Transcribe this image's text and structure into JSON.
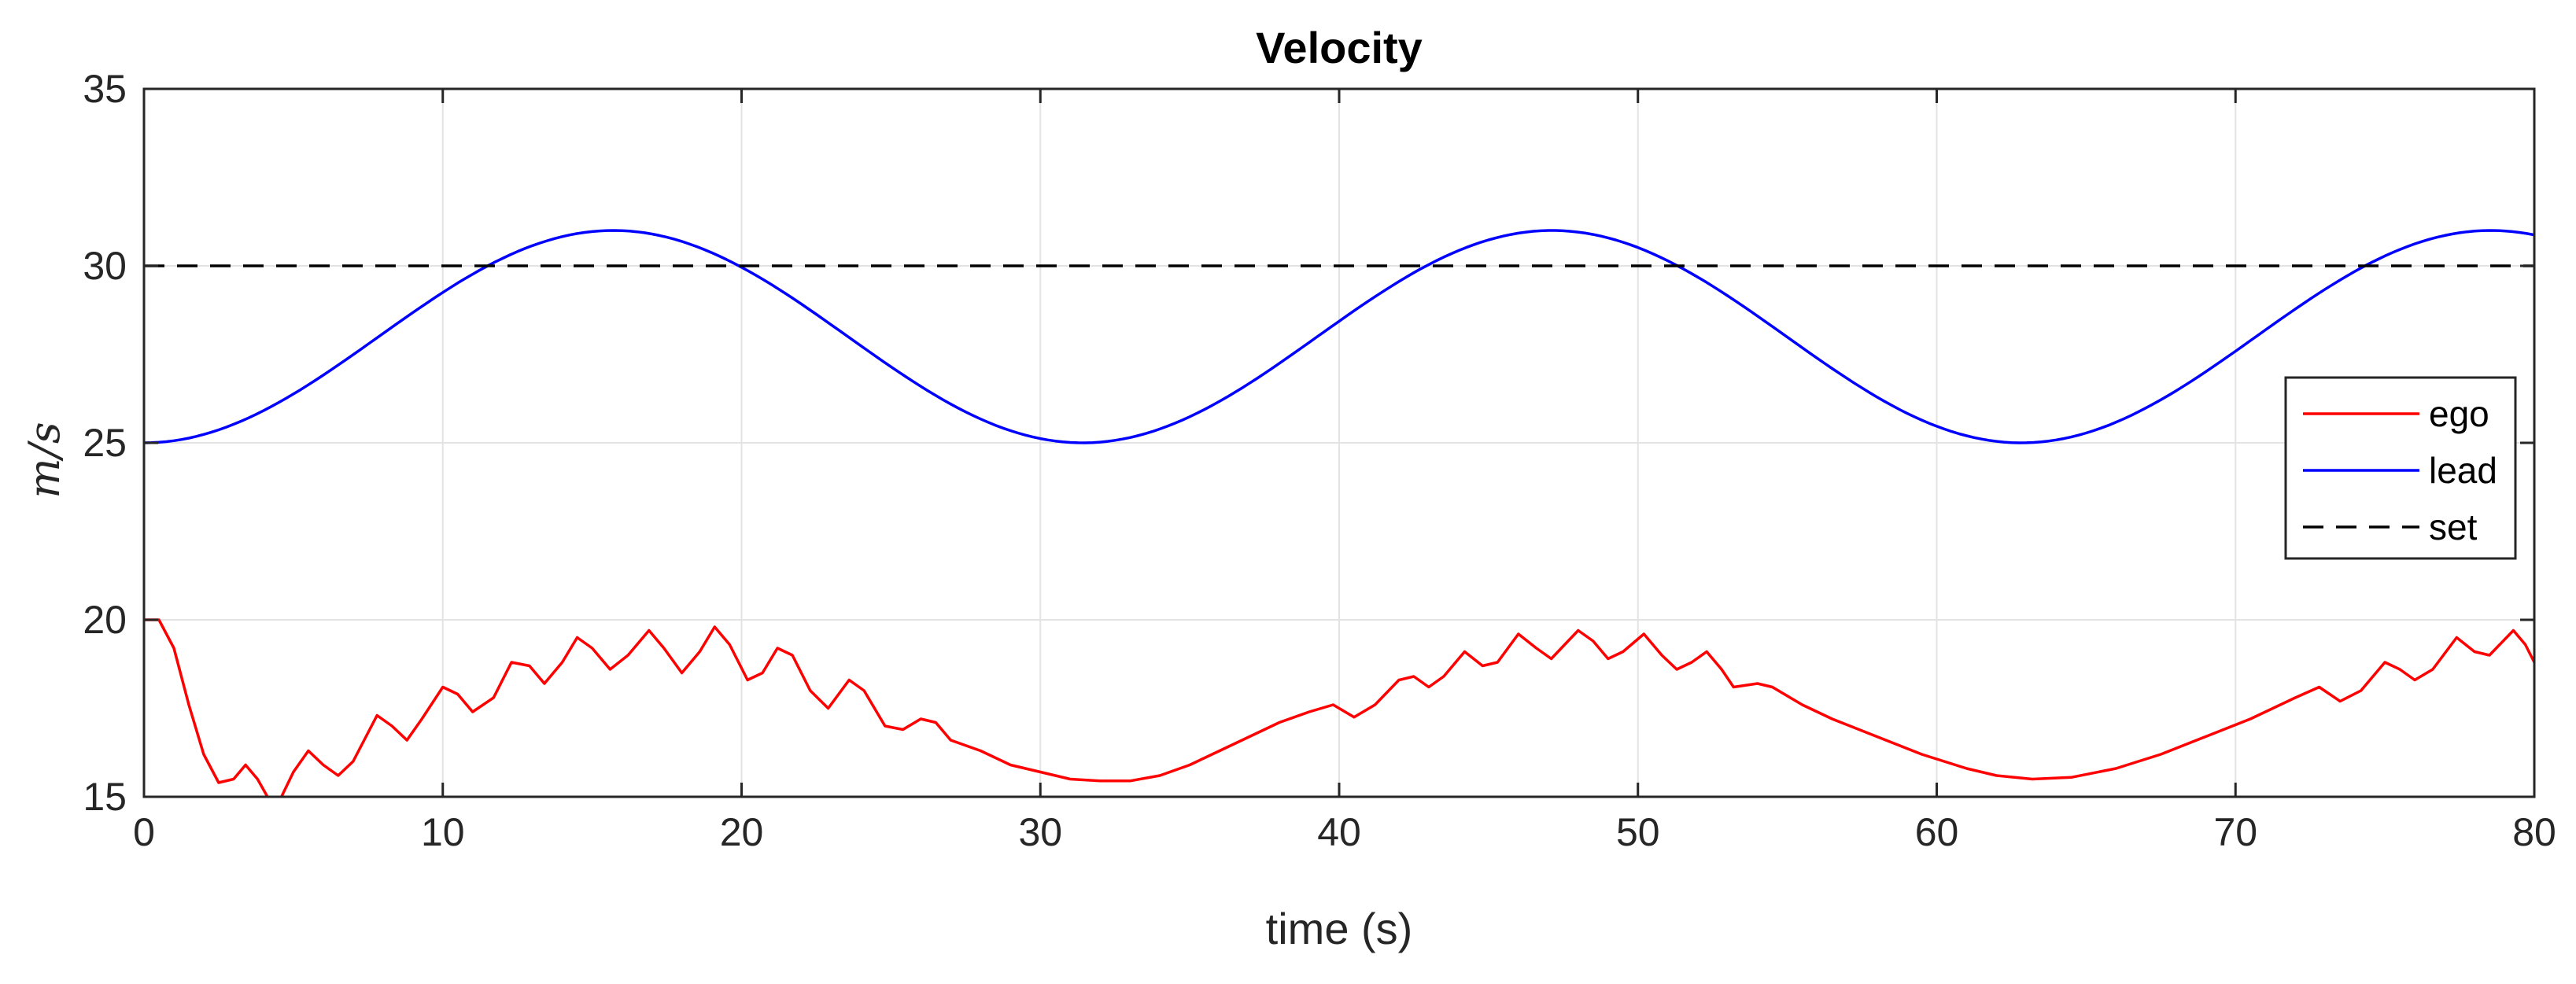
{
  "chart_data": {
    "type": "line",
    "title": "Velocity",
    "xlabel": "time (s)",
    "ylabel": "m/s",
    "xlim": [
      0,
      80
    ],
    "ylim": [
      15,
      35
    ],
    "xticks": [
      0,
      10,
      20,
      30,
      40,
      50,
      60,
      70,
      80
    ],
    "yticks": [
      15,
      20,
      25,
      30,
      35
    ],
    "grid": true,
    "legend_position": "right",
    "series": [
      {
        "name": "ego",
        "color": "#ff0000",
        "style": "solid",
        "points": [
          [
            0,
            20.0
          ],
          [
            0.5,
            20.0
          ],
          [
            1,
            19.2
          ],
          [
            1.5,
            17.6
          ],
          [
            2,
            16.2
          ],
          [
            2.5,
            15.4
          ],
          [
            3,
            15.5
          ],
          [
            3.4,
            15.9
          ],
          [
            3.8,
            15.5
          ],
          [
            4.2,
            14.9
          ],
          [
            4.6,
            15.0
          ],
          [
            5,
            15.7
          ],
          [
            5.5,
            16.3
          ],
          [
            6,
            15.9
          ],
          [
            6.5,
            15.6
          ],
          [
            7,
            16.0
          ],
          [
            7.8,
            17.3
          ],
          [
            8.3,
            17.0
          ],
          [
            8.8,
            16.6
          ],
          [
            9.3,
            17.2
          ],
          [
            10,
            18.1
          ],
          [
            10.5,
            17.9
          ],
          [
            11,
            17.4
          ],
          [
            11.7,
            17.8
          ],
          [
            12.3,
            18.8
          ],
          [
            12.9,
            18.7
          ],
          [
            13.4,
            18.2
          ],
          [
            14,
            18.8
          ],
          [
            14.5,
            19.5
          ],
          [
            15,
            19.2
          ],
          [
            15.6,
            18.6
          ],
          [
            16.2,
            19.0
          ],
          [
            16.9,
            19.7
          ],
          [
            17.4,
            19.2
          ],
          [
            18,
            18.5
          ],
          [
            18.6,
            19.1
          ],
          [
            19.1,
            19.8
          ],
          [
            19.6,
            19.3
          ],
          [
            20.2,
            18.3
          ],
          [
            20.7,
            18.5
          ],
          [
            21.2,
            19.2
          ],
          [
            21.7,
            19.0
          ],
          [
            22.3,
            18.0
          ],
          [
            22.9,
            17.5
          ],
          [
            23.6,
            18.3
          ],
          [
            24.1,
            18.0
          ],
          [
            24.8,
            17.0
          ],
          [
            25.4,
            16.9
          ],
          [
            26,
            17.2
          ],
          [
            26.5,
            17.1
          ],
          [
            27,
            16.6
          ],
          [
            28,
            16.3
          ],
          [
            29,
            15.9
          ],
          [
            30,
            15.7
          ],
          [
            31,
            15.5
          ],
          [
            32,
            15.45
          ],
          [
            33,
            15.45
          ],
          [
            34,
            15.6
          ],
          [
            35,
            15.9
          ],
          [
            36,
            16.3
          ],
          [
            37,
            16.7
          ],
          [
            38,
            17.1
          ],
          [
            39,
            17.4
          ],
          [
            39.8,
            17.6
          ],
          [
            40.5,
            17.25
          ],
          [
            41.2,
            17.6
          ],
          [
            42,
            18.3
          ],
          [
            42.5,
            18.4
          ],
          [
            43,
            18.1
          ],
          [
            43.5,
            18.4
          ],
          [
            44.2,
            19.1
          ],
          [
            44.8,
            18.7
          ],
          [
            45.3,
            18.8
          ],
          [
            46,
            19.6
          ],
          [
            46.6,
            19.2
          ],
          [
            47.1,
            18.9
          ],
          [
            48,
            19.7
          ],
          [
            48.5,
            19.4
          ],
          [
            49,
            18.9
          ],
          [
            49.5,
            19.1
          ],
          [
            50.2,
            19.6
          ],
          [
            50.8,
            19.0
          ],
          [
            51.3,
            18.6
          ],
          [
            51.8,
            18.8
          ],
          [
            52.3,
            19.1
          ],
          [
            52.8,
            18.6
          ],
          [
            53.2,
            18.1
          ],
          [
            54,
            18.2
          ],
          [
            54.5,
            18.1
          ],
          [
            55.5,
            17.6
          ],
          [
            56.5,
            17.2
          ],
          [
            58,
            16.7
          ],
          [
            59.5,
            16.2
          ],
          [
            61,
            15.8
          ],
          [
            62,
            15.6
          ],
          [
            63.2,
            15.5
          ],
          [
            64.5,
            15.55
          ],
          [
            66,
            15.8
          ],
          [
            67.5,
            16.2
          ],
          [
            69,
            16.7
          ],
          [
            70.5,
            17.2
          ],
          [
            72,
            17.8
          ],
          [
            72.8,
            18.1
          ],
          [
            73.5,
            17.7
          ],
          [
            74.2,
            18.0
          ],
          [
            75,
            18.8
          ],
          [
            75.5,
            18.6
          ],
          [
            76,
            18.3
          ],
          [
            76.6,
            18.6
          ],
          [
            77.4,
            19.5
          ],
          [
            78,
            19.1
          ],
          [
            78.5,
            19.0
          ],
          [
            79.3,
            19.7
          ],
          [
            79.7,
            19.3
          ],
          [
            80,
            18.8
          ]
        ]
      },
      {
        "name": "lead",
        "color": "#0000ff",
        "style": "solid",
        "model": {
          "kind": "sine",
          "mean": 28,
          "amplitude": 3,
          "period": 31.416,
          "phase_deg": -90,
          "x_start": 0,
          "x_end": 80,
          "step": 0.25
        }
      },
      {
        "name": "set",
        "color": "#000000",
        "style": "dashed",
        "points": [
          [
            0,
            30
          ],
          [
            80,
            30
          ]
        ]
      }
    ]
  }
}
